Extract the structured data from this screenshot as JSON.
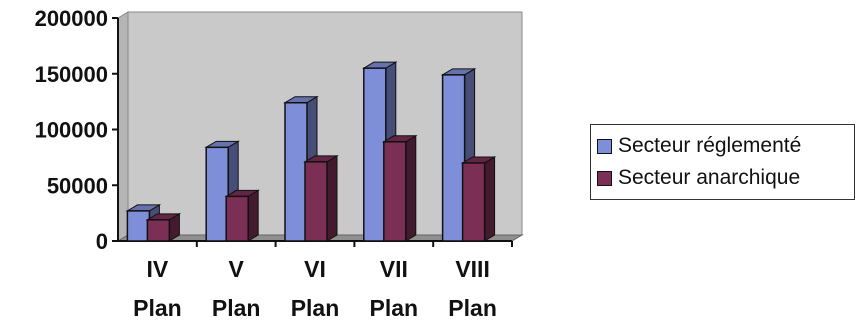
{
  "chart_data": {
    "type": "bar",
    "categories": [
      [
        "IV",
        "Plan"
      ],
      [
        "V",
        "Plan"
      ],
      [
        "VI",
        "Plan"
      ],
      [
        "VII",
        "Plan"
      ],
      [
        "VIII",
        "Plan"
      ]
    ],
    "series": [
      {
        "name": "Secteur réglementé",
        "values": [
          27000,
          84000,
          124000,
          155000,
          149000
        ],
        "color": "#7f8ed8"
      },
      {
        "name": "Secteur anarchique",
        "values": [
          19000,
          40000,
          71000,
          89000,
          70000
        ],
        "color": "#7b2f55"
      }
    ],
    "ylim": [
      0,
      200000
    ],
    "yticks": [
      "0",
      "50000",
      "100000",
      "150000",
      "200000"
    ],
    "grid": false,
    "legend": "right",
    "title": "",
    "xlabel": "",
    "ylabel": ""
  }
}
